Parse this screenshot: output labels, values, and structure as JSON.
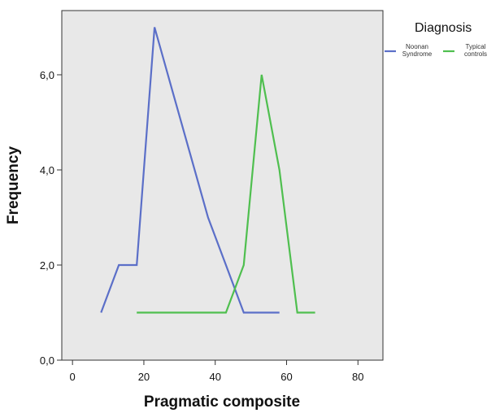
{
  "chart_data": {
    "type": "line",
    "title": "",
    "xlabel": "Pragmatic composite",
    "ylabel": "Frequency",
    "xlim": [
      -3,
      87
    ],
    "ylim": [
      0,
      7.35
    ],
    "xticks": [
      0,
      20,
      40,
      60,
      80
    ],
    "xtick_labels": [
      "0",
      "20",
      "40",
      "60",
      "80"
    ],
    "yticks": [
      0,
      2,
      4,
      6
    ],
    "ytick_labels": [
      "0,0",
      "2,0",
      "4,0",
      "6,0"
    ],
    "grid": false,
    "background": "#e8e8e8",
    "legend": {
      "title": "Diagnosis",
      "position": "top-right, outside plot"
    },
    "series": [
      {
        "name": "Noonan Syndrome",
        "name_lines": [
          "Noonan",
          "Syndrome"
        ],
        "color": "#5b6fc8",
        "x": [
          8,
          13,
          18,
          23,
          28,
          33,
          38,
          43,
          48,
          53,
          58
        ],
        "y": [
          1,
          2,
          2,
          7,
          5.66,
          4.33,
          3,
          2,
          1,
          1,
          1
        ]
      },
      {
        "name": "Typical controls",
        "name_lines": [
          "Typical",
          "controls"
        ],
        "color": "#4fbf4f",
        "x": [
          18,
          23,
          28,
          33,
          38,
          43,
          48,
          53,
          58,
          63,
          68
        ],
        "y": [
          1,
          1,
          1,
          1,
          1,
          1,
          2,
          6,
          4,
          1,
          1
        ]
      }
    ]
  }
}
